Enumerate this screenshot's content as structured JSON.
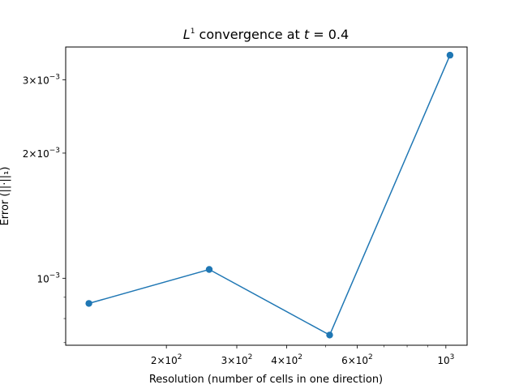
{
  "chart_data": {
    "type": "line",
    "title": {
      "prefix": "L",
      "prefix_sup": "1",
      "middle": " convergence at ",
      "var": "t",
      "suffix": " = 0.4"
    },
    "xlabel": "Resolution (number of cells in one direction)",
    "ylabel": "Error (||·||₁)",
    "xscale": "log",
    "yscale": "log",
    "xlim": [
      112,
      1130
    ],
    "ylim": [
      0.00069,
      0.0036
    ],
    "grid": false,
    "colors": {
      "line": "#1f77b4",
      "axes": "#000000"
    },
    "series": [
      {
        "x": [
          128,
          256,
          512,
          1024
        ],
        "y": [
          0.00087,
          0.00105,
          0.00073,
          0.00344
        ],
        "marker": "circle"
      }
    ],
    "x_ticks": [
      {
        "value": 200,
        "mantissa": "2",
        "base": "10",
        "exp": "2"
      },
      {
        "value": 300,
        "mantissa": "3",
        "base": "10",
        "exp": "2"
      },
      {
        "value": 400,
        "mantissa": "4",
        "base": "10",
        "exp": "2"
      },
      {
        "value": 600,
        "mantissa": "6",
        "base": "10",
        "exp": "2"
      },
      {
        "value": 1000,
        "mantissa": "",
        "base": "10",
        "exp": "3"
      }
    ],
    "x_minor_ticks": [
      500,
      700,
      800,
      900
    ],
    "y_ticks": [
      {
        "value": 0.001,
        "mantissa": "",
        "base": "10",
        "exp": "−3"
      },
      {
        "value": 0.002,
        "mantissa": "2",
        "base": "10",
        "exp": "−3"
      },
      {
        "value": 0.003,
        "mantissa": "3",
        "base": "10",
        "exp": "−3"
      }
    ],
    "y_minor_ticks": [
      0.0007,
      0.0008,
      0.0009
    ]
  }
}
